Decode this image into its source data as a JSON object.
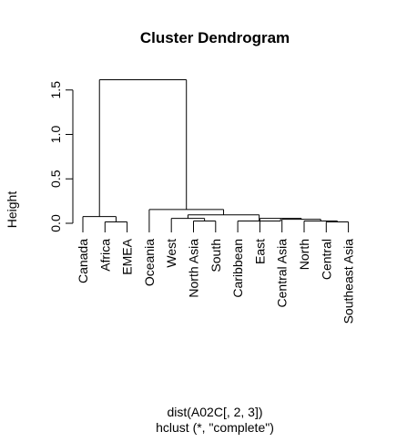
{
  "chart_data": {
    "type": "dendrogram",
    "title": "Cluster Dendrogram",
    "xlabel_line1": "dist(A02C[, 2, 3])",
    "xlabel_line2": "hclust (*, \"complete\")",
    "ylabel": "Height",
    "ylim": [
      0,
      1.6
    ],
    "yticks": [
      0.0,
      0.5,
      1.0,
      1.5
    ],
    "ytick_labels": [
      "0.0",
      "0.5",
      "1.0",
      "1.5"
    ],
    "leaves": [
      "Canada",
      "Africa",
      "EMEA",
      "Oceania",
      "West",
      "North Asia",
      "South",
      "Caribbean",
      "East",
      "Central Asia",
      "North",
      "Central",
      "Southeast Asia"
    ],
    "merges": [
      {
        "left": "Central",
        "right": "Southeast Asia",
        "height": 0.0
      },
      {
        "left": "North",
        "right": "[Central, Southeast Asia]",
        "height": 0.01
      },
      {
        "left": "Central Asia",
        "right": "[North, Central, Southeast Asia]",
        "height": 0.03
      },
      {
        "left": "East",
        "right": "[Central Asia, North, Central, Southeast Asia]",
        "height": 0.04
      },
      {
        "left": "Caribbean",
        "right": "[East ... Southeast Asia]",
        "height": 0.01
      },
      {
        "left": "North Asia",
        "right": "South",
        "height": 0.01
      },
      {
        "left": "West",
        "right": "[North Asia, South]",
        "height": 0.04
      },
      {
        "left": "[West, North Asia, South]",
        "right": "[Caribbean ... Southeast Asia]",
        "height": 0.08
      },
      {
        "left": "Oceania",
        "right": "[West ... Southeast Asia]",
        "height": 0.14
      },
      {
        "left": "Africa",
        "right": "EMEA",
        "height": 0.0
      },
      {
        "left": "Canada",
        "right": "[Africa, EMEA]",
        "height": 0.06
      },
      {
        "left": "[Canada, Africa, EMEA]",
        "right": "[Oceania ... Southeast Asia]",
        "height": 1.6
      }
    ]
  }
}
